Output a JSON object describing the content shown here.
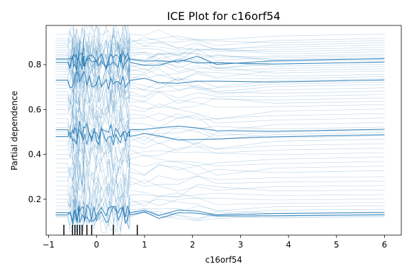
{
  "chart_data": {
    "type": "line",
    "title": "ICE Plot for c16orf54",
    "xlabel": "c16orf54",
    "ylabel": "Partial dependence",
    "xlim": [
      -1.05,
      6.35
    ],
    "ylim": [
      0.04,
      0.975
    ],
    "x_ticks": [
      -1,
      0,
      1,
      2,
      3,
      4,
      5,
      6
    ],
    "x_tick_labels": [
      "−1",
      "0",
      "1",
      "2",
      "3",
      "4",
      "5",
      "6"
    ],
    "y_ticks": [
      0.2,
      0.4,
      0.6,
      0.8
    ],
    "y_tick_labels": [
      "0.2",
      "0.4",
      "0.6",
      "0.8"
    ],
    "grid": false,
    "legend": "none",
    "color": "#1f77b4",
    "x": [
      -0.85,
      -0.8,
      -0.75,
      -0.7,
      -0.65,
      -0.6,
      -0.55,
      -0.5,
      -0.48,
      -0.45,
      -0.42,
      -0.4,
      -0.37,
      -0.35,
      -0.3,
      -0.27,
      -0.25,
      -0.2,
      -0.15,
      -0.1,
      -0.05,
      0.0,
      0.05,
      0.1,
      0.2,
      0.25,
      0.3,
      0.35,
      0.4,
      0.45,
      0.5,
      0.55,
      0.6,
      0.65,
      0.68,
      0.7,
      1.0,
      1.3,
      1.7,
      2.1,
      2.5,
      3.7,
      6.0
    ],
    "series_baselines": [
      0.935,
      0.915,
      0.905,
      0.895,
      0.885,
      0.875,
      0.865,
      0.855,
      0.845,
      0.838,
      0.83,
      0.825,
      0.82,
      0.81,
      0.8,
      0.79,
      0.78,
      0.77,
      0.755,
      0.745,
      0.735,
      0.72,
      0.71,
      0.695,
      0.68,
      0.665,
      0.65,
      0.635,
      0.62,
      0.6,
      0.58,
      0.56,
      0.54,
      0.52,
      0.5,
      0.49,
      0.475,
      0.46,
      0.44,
      0.42,
      0.4,
      0.38,
      0.36,
      0.34,
      0.32,
      0.3,
      0.28,
      0.26,
      0.24,
      0.22,
      0.2,
      0.185,
      0.17,
      0.155,
      0.14,
      0.13,
      0.125,
      0.12
    ],
    "strong_series_baselines": [
      0.825,
      0.81,
      0.73,
      0.51,
      0.48,
      0.14,
      0.13
    ],
    "rug_x": [
      -0.68,
      -0.5,
      -0.45,
      -0.4,
      -0.35,
      -0.3,
      -0.2,
      -0.1,
      0.35,
      0.85
    ]
  }
}
